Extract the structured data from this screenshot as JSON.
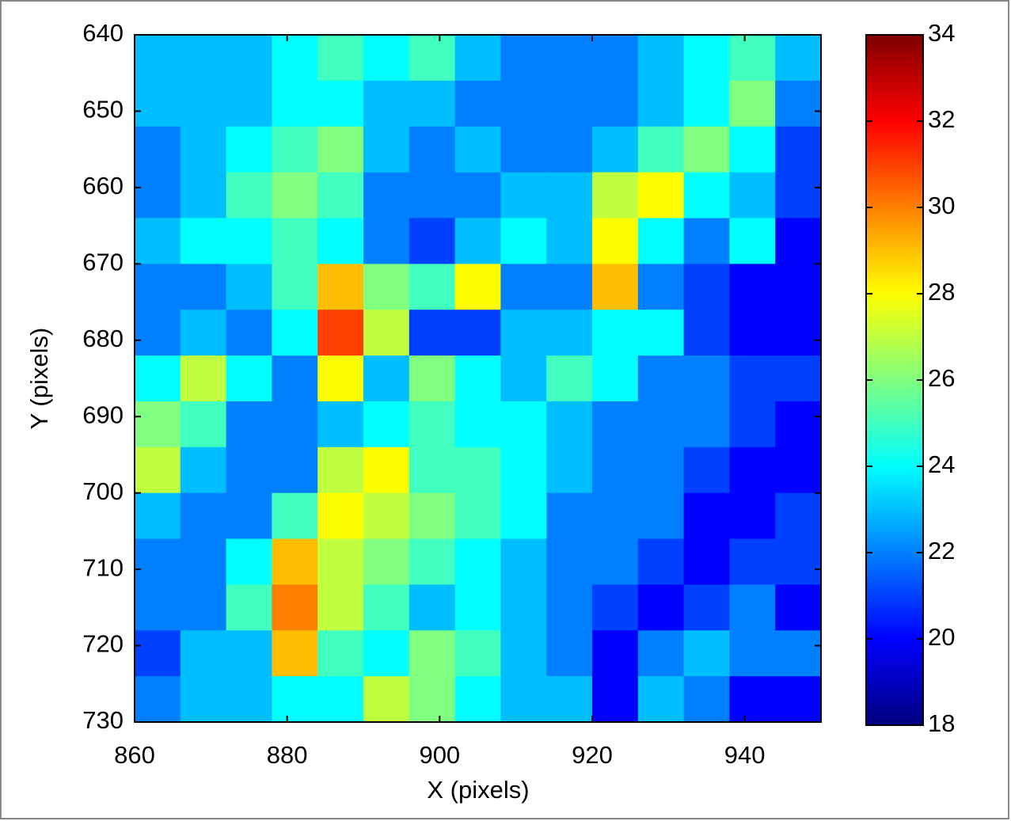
{
  "chart_data": {
    "type": "heatmap",
    "xlabel": "X (pixels)",
    "ylabel": "Y (pixels)",
    "xlim": [
      860,
      950
    ],
    "ylim": [
      640,
      730
    ],
    "xticks": [
      860,
      880,
      900,
      920,
      940
    ],
    "yticks": [
      640,
      650,
      660,
      670,
      680,
      690,
      700,
      710,
      720,
      730
    ],
    "x_edges": [
      860,
      866,
      872,
      878,
      884,
      890,
      896,
      902,
      908,
      914,
      920,
      926,
      932,
      938,
      944,
      950
    ],
    "y_edges": [
      640,
      646,
      652,
      658,
      664,
      670,
      676,
      682,
      688,
      694,
      700,
      706,
      712,
      718,
      724,
      730
    ],
    "colormap": "jet",
    "clim": [
      18,
      34
    ],
    "cticks": [
      18,
      20,
      22,
      24,
      26,
      28,
      30,
      32,
      34
    ],
    "values": [
      [
        23,
        23,
        23,
        24,
        25,
        24,
        25,
        23,
        22,
        22,
        22,
        23,
        24,
        25,
        23
      ],
      [
        23,
        23,
        23,
        24,
        24,
        23,
        23,
        22,
        22,
        22,
        22,
        23,
        24,
        26,
        22
      ],
      [
        22,
        23,
        24,
        25,
        26,
        23,
        22,
        23,
        22,
        22,
        23,
        25,
        26,
        24,
        21
      ],
      [
        22,
        23,
        25,
        26,
        25,
        22,
        22,
        22,
        23,
        23,
        27,
        28,
        24,
        23,
        21
      ],
      [
        23,
        24,
        24,
        25,
        24,
        22,
        21,
        23,
        24,
        23,
        28,
        24,
        22,
        24,
        20
      ],
      [
        22,
        22,
        23,
        25,
        29,
        26,
        25,
        28,
        22,
        22,
        29,
        22,
        21,
        20,
        20
      ],
      [
        22,
        23,
        22,
        24,
        31,
        27,
        21,
        21,
        23,
        23,
        24,
        24,
        21,
        20,
        20
      ],
      [
        24,
        27,
        24,
        22,
        28,
        23,
        26,
        24,
        23,
        25,
        24,
        22,
        22,
        21,
        21
      ],
      [
        26,
        25,
        22,
        22,
        23,
        24,
        25,
        24,
        24,
        23,
        22,
        22,
        22,
        21,
        20
      ],
      [
        27,
        23,
        22,
        22,
        27,
        28,
        25,
        25,
        24,
        23,
        22,
        22,
        21,
        20,
        20
      ],
      [
        23,
        22,
        22,
        25,
        28,
        27,
        26,
        25,
        24,
        22,
        22,
        22,
        20,
        20,
        21
      ],
      [
        22,
        22,
        24,
        29,
        27,
        26,
        25,
        24,
        23,
        22,
        22,
        21,
        20,
        21,
        21
      ],
      [
        22,
        22,
        25,
        30,
        27,
        25,
        23,
        24,
        23,
        22,
        21,
        20,
        21,
        22,
        20
      ],
      [
        21,
        23,
        23,
        29,
        25,
        24,
        26,
        25,
        23,
        22,
        20,
        22,
        23,
        22,
        22
      ],
      [
        22,
        23,
        23,
        24,
        24,
        27,
        26,
        24,
        23,
        23,
        20,
        23,
        22,
        20,
        20
      ]
    ]
  }
}
